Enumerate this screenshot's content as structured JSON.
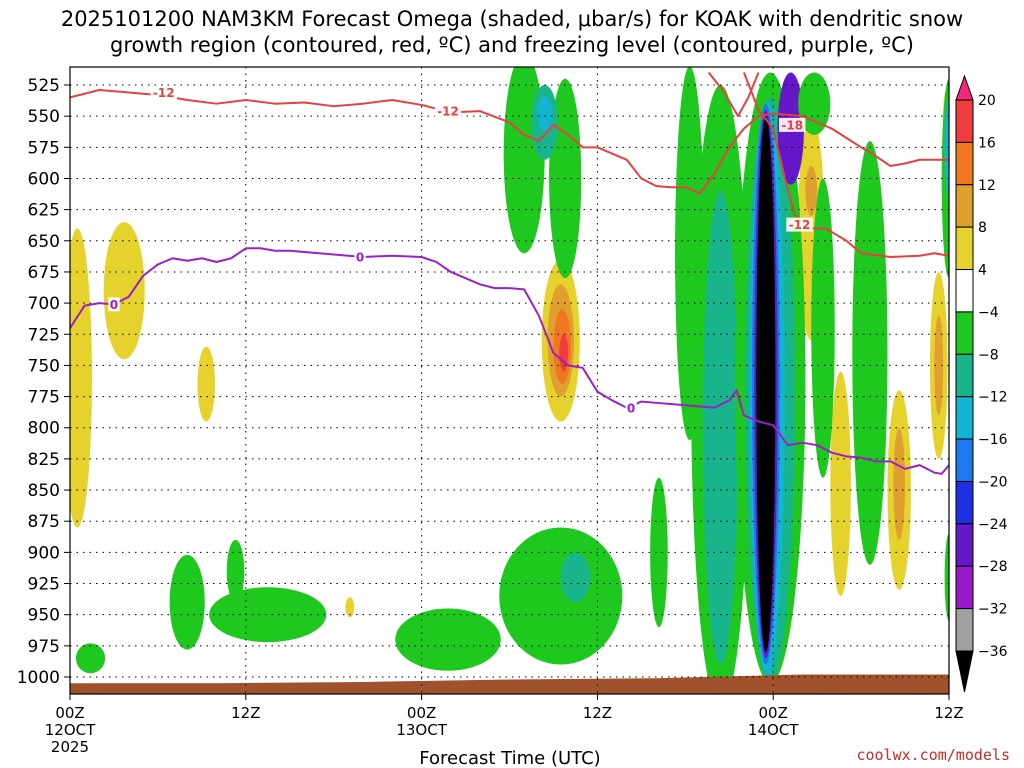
{
  "chart_data": {
    "type": "heatmap",
    "title_line1": "2025101200 NAM3KM Forecast Omega (shaded, μbar/s) for KOAK with dendritic snow",
    "title_line2": "growth region (contoured, red, ºC) and freezing level (contoured, purple, ºC)",
    "xlabel": "Forecast Time (UTC)",
    "credit": "coolwx.com/models",
    "xlim_hours": [
      0,
      60
    ],
    "ylim_hPa": [
      1010,
      515
    ],
    "yticks": [
      525,
      550,
      575,
      600,
      625,
      650,
      675,
      700,
      725,
      750,
      775,
      800,
      825,
      850,
      875,
      900,
      925,
      950,
      975,
      1000
    ],
    "xticks": [
      {
        "h": 0,
        "label": "00Z",
        "sub1": "12OCT",
        "sub2": "2025"
      },
      {
        "h": 12,
        "label": "12Z",
        "sub1": "",
        "sub2": ""
      },
      {
        "h": 24,
        "label": "00Z",
        "sub1": "13OCT",
        "sub2": ""
      },
      {
        "h": 36,
        "label": "12Z",
        "sub1": "",
        "sub2": ""
      },
      {
        "h": 48,
        "label": "00Z",
        "sub1": "14OCT",
        "sub2": ""
      },
      {
        "h": 60,
        "label": "12Z",
        "sub1": "",
        "sub2": ""
      }
    ],
    "colorbar": {
      "labels": [
        "20",
        "16",
        "12",
        "8",
        "4",
        "−4",
        "−8",
        "−12",
        "−16",
        "−20",
        "−24",
        "−28",
        "−32",
        "−36"
      ],
      "colors": [
        "#f0287a",
        "#f03c3c",
        "#f07820",
        "#e0a030",
        "#e6d22c",
        "#ffffff",
        "#1ec81e",
        "#18b48c",
        "#12b4d2",
        "#1e78f0",
        "#2030e0",
        "#6418c8",
        "#9618c8",
        "#a0a0a0",
        "#000000"
      ]
    },
    "omega_blobs": [
      {
        "h": 0.5,
        "p": 760,
        "dh": 1.0,
        "dp": 120,
        "c": "#e6d22c"
      },
      {
        "h": 3.7,
        "p": 690,
        "dh": 1.4,
        "dp": 55,
        "c": "#e6d22c"
      },
      {
        "h": 9.3,
        "p": 765,
        "dh": 0.6,
        "dp": 30,
        "c": "#e6d22c"
      },
      {
        "h": 19.1,
        "p": 944,
        "dh": 0.3,
        "dp": 8,
        "c": "#e6d22c"
      },
      {
        "h": 33.5,
        "p": 730,
        "dh": 1.3,
        "dp": 65,
        "c": "#e6d22c"
      },
      {
        "h": 33.5,
        "p": 730,
        "dh": 0.9,
        "dp": 45,
        "c": "#e0a030"
      },
      {
        "h": 33.6,
        "p": 735,
        "dh": 0.6,
        "dp": 30,
        "c": "#f07820"
      },
      {
        "h": 33.7,
        "p": 740,
        "dh": 0.3,
        "dp": 15,
        "c": "#f03c3c"
      },
      {
        "h": 50.6,
        "p": 640,
        "dh": 0.9,
        "dp": 90,
        "c": "#e6d22c"
      },
      {
        "h": 50.6,
        "p": 610,
        "dh": 0.4,
        "dp": 20,
        "c": "#e0a030"
      },
      {
        "h": 52.6,
        "p": 845,
        "dh": 0.7,
        "dp": 90,
        "c": "#e6d22c"
      },
      {
        "h": 56.6,
        "p": 850,
        "dh": 0.8,
        "dp": 80,
        "c": "#e6d22c"
      },
      {
        "h": 56.6,
        "p": 845,
        "dh": 0.4,
        "dp": 45,
        "c": "#e0a030"
      },
      {
        "h": 59.3,
        "p": 750,
        "dh": 0.6,
        "dp": 75,
        "c": "#e6d22c"
      },
      {
        "h": 59.3,
        "p": 750,
        "dh": 0.3,
        "dp": 40,
        "c": "#e0a030"
      },
      {
        "h": 59.8,
        "p": 550,
        "dh": 0.2,
        "dp": 20,
        "c": "#e6d22c"
      },
      {
        "h": 1.4,
        "p": 985,
        "dh": 1.0,
        "dp": 12,
        "c": "#1ec81e"
      },
      {
        "h": 8.0,
        "p": 940,
        "dh": 1.2,
        "dp": 38,
        "c": "#1ec81e"
      },
      {
        "h": 13.5,
        "p": 950,
        "dh": 4.0,
        "dp": 22,
        "c": "#1ec81e"
      },
      {
        "h": 11.3,
        "p": 915,
        "dh": 0.6,
        "dp": 25,
        "c": "#1ec81e"
      },
      {
        "h": 25.8,
        "p": 970,
        "dh": 3.6,
        "dp": 25,
        "c": "#1ec81e"
      },
      {
        "h": 33.5,
        "p": 935,
        "dh": 4.2,
        "dp": 55,
        "c": "#1ec81e"
      },
      {
        "h": 34.5,
        "p": 920,
        "dh": 1.0,
        "dp": 20,
        "c": "#18b48c"
      },
      {
        "h": 31.0,
        "p": 580,
        "dh": 1.4,
        "dp": 80,
        "c": "#1ec81e"
      },
      {
        "h": 33.8,
        "p": 600,
        "dh": 1.1,
        "dp": 80,
        "c": "#1ec81e"
      },
      {
        "h": 32.4,
        "p": 555,
        "dh": 0.9,
        "dp": 30,
        "c": "#18b48c"
      },
      {
        "h": 32.4,
        "p": 548,
        "dh": 0.5,
        "dp": 14,
        "c": "#12b4d2"
      },
      {
        "h": 40.2,
        "p": 900,
        "dh": 0.6,
        "dp": 60,
        "c": "#1ec81e"
      },
      {
        "h": 42.3,
        "p": 660,
        "dh": 1.0,
        "dp": 150,
        "c": "#1ec81e"
      },
      {
        "h": 44.4,
        "p": 775,
        "dh": 2.0,
        "dp": 250,
        "c": "#1ec81e"
      },
      {
        "h": 44.4,
        "p": 800,
        "dh": 1.2,
        "dp": 190,
        "c": "#18b48c"
      },
      {
        "h": 47.8,
        "p": 760,
        "dh": 2.4,
        "dp": 245,
        "c": "#1ec81e"
      },
      {
        "h": 47.8,
        "p": 770,
        "dh": 1.7,
        "dp": 235,
        "c": "#18b48c"
      },
      {
        "h": 47.6,
        "p": 770,
        "dh": 1.2,
        "dp": 230,
        "c": "#12b4d2"
      },
      {
        "h": 47.5,
        "p": 765,
        "dh": 0.95,
        "dp": 225,
        "c": "#1e78f0"
      },
      {
        "h": 47.5,
        "p": 765,
        "dh": 0.8,
        "dp": 220,
        "c": "#6418c8"
      },
      {
        "h": 47.5,
        "p": 765,
        "dh": 0.65,
        "dp": 215,
        "c": "#000000"
      },
      {
        "h": 49.2,
        "p": 560,
        "dh": 0.9,
        "dp": 45,
        "c": "#6418c8"
      },
      {
        "h": 51.4,
        "p": 720,
        "dh": 0.8,
        "dp": 120,
        "c": "#1ec81e"
      },
      {
        "h": 50.8,
        "p": 540,
        "dh": 1.1,
        "dp": 25,
        "c": "#1ec81e"
      },
      {
        "h": 54.6,
        "p": 740,
        "dh": 1.2,
        "dp": 170,
        "c": "#1ec81e"
      },
      {
        "h": 60.0,
        "p": 600,
        "dh": 0.5,
        "dp": 80,
        "c": "#1ec81e"
      },
      {
        "h": 60.0,
        "p": 575,
        "dh": 0.3,
        "dp": 40,
        "c": "#12b4d2"
      },
      {
        "h": 60.0,
        "p": 920,
        "dh": 0.3,
        "dp": 35,
        "c": "#1ec81e"
      }
    ],
    "snow_region_contour": {
      "color": "#e64040",
      "lines": [
        {
          "label": "-12",
          "label_at": [
            [
              6.4,
              531
            ],
            [
              25.8,
              546
            ]
          ],
          "points": [
            [
              0,
              535
            ],
            [
              2,
              529
            ],
            [
              4,
              531
            ],
            [
              6,
              533
            ],
            [
              8,
              537
            ],
            [
              10,
              540
            ],
            [
              12,
              537
            ],
            [
              14,
              540
            ],
            [
              16,
              539
            ],
            [
              18,
              542
            ],
            [
              20,
              540
            ],
            [
              22,
              537
            ],
            [
              24,
              541
            ],
            [
              26,
              547
            ],
            [
              28,
              546
            ],
            [
              30,
              555
            ],
            [
              31,
              565
            ],
            [
              32,
              570
            ],
            [
              33,
              557
            ],
            [
              34,
              565
            ],
            [
              35,
              575
            ],
            [
              36,
              575
            ],
            [
              37,
              580
            ],
            [
              38,
              585
            ],
            [
              39,
              600
            ],
            [
              40,
              606
            ],
            [
              41,
              607
            ],
            [
              42,
              607
            ],
            [
              43,
              612
            ],
            [
              44,
              596
            ],
            [
              45,
              575
            ],
            [
              46,
              560
            ],
            [
              47,
              550
            ],
            [
              48,
              548
            ],
            [
              50,
              550
            ],
            [
              52,
              560
            ],
            [
              54,
              575
            ],
            [
              55,
              582
            ],
            [
              56,
              590
            ],
            [
              57,
              588
            ],
            [
              58,
              585
            ],
            [
              59,
              585
            ],
            [
              60,
              585
            ]
          ]
        },
        {
          "label": "-12",
          "label_at": [
            [
              49.8,
              637
            ]
          ],
          "points": [
            [
              46,
              515
            ],
            [
              47,
              545
            ],
            [
              48,
              560
            ],
            [
              48.8,
              600
            ],
            [
              49.5,
              630
            ],
            [
              50.5,
              640
            ],
            [
              51.5,
              640
            ],
            [
              52,
              643
            ],
            [
              53,
              650
            ],
            [
              54,
              660
            ],
            [
              56,
              663
            ],
            [
              58,
              662
            ],
            [
              59,
              660
            ],
            [
              60,
              662
            ]
          ]
        },
        {
          "label": "-18",
          "label_at": [
            [
              49.3,
              557
            ]
          ],
          "points": [
            [
              43.6,
              515
            ],
            [
              44.6,
              530
            ],
            [
              45.6,
              550
            ],
            [
              46.3,
              535
            ],
            [
              47,
              515
            ]
          ]
        }
      ]
    },
    "freezing_level_contour": {
      "color": "#9a20c8",
      "label": "0",
      "label_at": [
        [
          3.0,
          701
        ],
        [
          19.8,
          663
        ],
        [
          38.3,
          784
        ]
      ],
      "points": [
        [
          0,
          720
        ],
        [
          1,
          702
        ],
        [
          2,
          700
        ],
        [
          3,
          701
        ],
        [
          4,
          695
        ],
        [
          5,
          678
        ],
        [
          6,
          669
        ],
        [
          7,
          664
        ],
        [
          8,
          666
        ],
        [
          9,
          664
        ],
        [
          10,
          667
        ],
        [
          11,
          664
        ],
        [
          12,
          656
        ],
        [
          13,
          656
        ],
        [
          14,
          658
        ],
        [
          15,
          658
        ],
        [
          17,
          660
        ],
        [
          20,
          663
        ],
        [
          22,
          662
        ],
        [
          24,
          663
        ],
        [
          25,
          667
        ],
        [
          26,
          675
        ],
        [
          27,
          680
        ],
        [
          28,
          685
        ],
        [
          29,
          688
        ],
        [
          30,
          688
        ],
        [
          31,
          689
        ],
        [
          32,
          710
        ],
        [
          33,
          740
        ],
        [
          34,
          750
        ],
        [
          35,
          752
        ],
        [
          36,
          771
        ],
        [
          37,
          778
        ],
        [
          38,
          784
        ],
        [
          39,
          779
        ],
        [
          40,
          780
        ],
        [
          41,
          781
        ],
        [
          42,
          782
        ],
        [
          43,
          783
        ],
        [
          44,
          784
        ],
        [
          45,
          778
        ],
        [
          45.5,
          770
        ],
        [
          46,
          790
        ],
        [
          47,
          795
        ],
        [
          48,
          798
        ],
        [
          49,
          814
        ],
        [
          50,
          812
        ],
        [
          51,
          814
        ],
        [
          52,
          820
        ],
        [
          53,
          823
        ],
        [
          54,
          824
        ],
        [
          55,
          827
        ],
        [
          56,
          827
        ],
        [
          57,
          833
        ],
        [
          58,
          830
        ],
        [
          59,
          836
        ],
        [
          59.5,
          837
        ],
        [
          60,
          830
        ]
      ]
    },
    "terrain": {
      "color": "#a0522d",
      "points": [
        [
          0,
          1005
        ],
        [
          10,
          1005
        ],
        [
          20,
          1004
        ],
        [
          30,
          1002
        ],
        [
          40,
          1001
        ],
        [
          50,
          998
        ],
        [
          60,
          998
        ]
      ]
    }
  }
}
